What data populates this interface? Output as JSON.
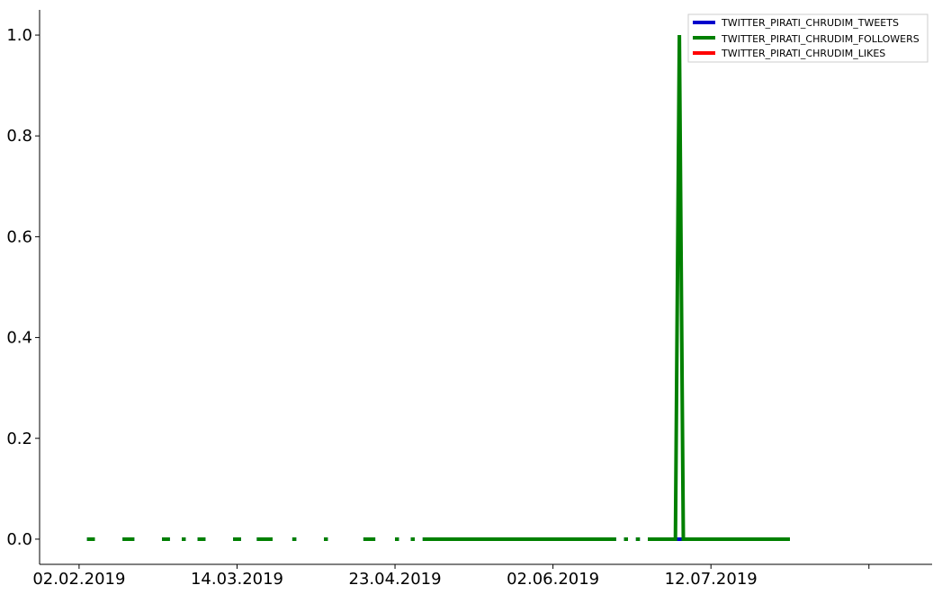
{
  "chart_data": {
    "type": "line",
    "title": "",
    "xlabel": "",
    "ylabel": "",
    "x_tick_labels": [
      "02.02.2019",
      "14.03.2019",
      "23.04.2019",
      "02.06.2019",
      "12.07.2019",
      ""
    ],
    "y_tick_labels": [
      "0.0",
      "0.2",
      "0.4",
      "0.6",
      "0.8",
      "1.0"
    ],
    "ylim": [
      -0.05,
      1.05
    ],
    "xlim": [
      "2019-01-23",
      "2019-09-06"
    ],
    "legend_position": "top-right",
    "grid": false,
    "series": [
      {
        "name": "TWITTER_PIRATI_CHRUDIM_TWEETS",
        "color": "#0000cc",
        "segments": [
          {
            "x": [
              "2019-02-04",
              "2019-02-06"
            ],
            "y": [
              0,
              0
            ]
          },
          {
            "x": [
              "2019-02-13",
              "2019-02-16"
            ],
            "y": [
              0,
              0
            ]
          },
          {
            "x": [
              "2019-02-23",
              "2019-02-25"
            ],
            "y": [
              0,
              0
            ]
          },
          {
            "x": [
              "2019-02-28",
              "2019-03-01"
            ],
            "y": [
              0,
              0
            ]
          },
          {
            "x": [
              "2019-03-04",
              "2019-03-06"
            ],
            "y": [
              0,
              0
            ]
          },
          {
            "x": [
              "2019-03-13",
              "2019-03-15"
            ],
            "y": [
              0,
              0
            ]
          },
          {
            "x": [
              "2019-03-19",
              "2019-03-23"
            ],
            "y": [
              0,
              0
            ]
          },
          {
            "x": [
              "2019-03-28",
              "2019-03-29"
            ],
            "y": [
              0,
              0
            ]
          },
          {
            "x": [
              "2019-04-05",
              "2019-04-06"
            ],
            "y": [
              0,
              0
            ]
          },
          {
            "x": [
              "2019-04-15",
              "2019-04-18"
            ],
            "y": [
              0,
              0
            ]
          },
          {
            "x": [
              "2019-04-23",
              "2019-04-24"
            ],
            "y": [
              0,
              0
            ]
          },
          {
            "x": [
              "2019-04-27",
              "2019-04-28"
            ],
            "y": [
              0,
              0
            ]
          },
          {
            "x": [
              "2019-04-30",
              "2019-06-18"
            ],
            "y": [
              0,
              0
            ]
          },
          {
            "x": [
              "2019-06-20",
              "2019-06-21"
            ],
            "y": [
              0,
              0
            ]
          },
          {
            "x": [
              "2019-06-23",
              "2019-06-24"
            ],
            "y": [
              0,
              0
            ]
          },
          {
            "x": [
              "2019-06-26",
              "2019-07-03",
              "2019-07-04",
              "2019-07-05",
              "2019-08-01"
            ],
            "y": [
              0,
              0,
              0,
              0,
              0
            ]
          }
        ]
      },
      {
        "name": "TWITTER_PIRATI_CHRUDIM_FOLLOWERS",
        "color": "#008000",
        "segments": [
          {
            "x": [
              "2019-02-04",
              "2019-02-06"
            ],
            "y": [
              0,
              0
            ]
          },
          {
            "x": [
              "2019-02-13",
              "2019-02-16"
            ],
            "y": [
              0,
              0
            ]
          },
          {
            "x": [
              "2019-02-23",
              "2019-02-25"
            ],
            "y": [
              0,
              0
            ]
          },
          {
            "x": [
              "2019-02-28",
              "2019-03-01"
            ],
            "y": [
              0,
              0
            ]
          },
          {
            "x": [
              "2019-03-04",
              "2019-03-06"
            ],
            "y": [
              0,
              0
            ]
          },
          {
            "x": [
              "2019-03-13",
              "2019-03-15"
            ],
            "y": [
              0,
              0
            ]
          },
          {
            "x": [
              "2019-03-19",
              "2019-03-23"
            ],
            "y": [
              0,
              0
            ]
          },
          {
            "x": [
              "2019-03-28",
              "2019-03-29"
            ],
            "y": [
              0,
              0
            ]
          },
          {
            "x": [
              "2019-04-05",
              "2019-04-06"
            ],
            "y": [
              0,
              0
            ]
          },
          {
            "x": [
              "2019-04-15",
              "2019-04-18"
            ],
            "y": [
              0,
              0
            ]
          },
          {
            "x": [
              "2019-04-23",
              "2019-04-24"
            ],
            "y": [
              0,
              0
            ]
          },
          {
            "x": [
              "2019-04-27",
              "2019-04-28"
            ],
            "y": [
              0,
              0
            ]
          },
          {
            "x": [
              "2019-04-30",
              "2019-06-18"
            ],
            "y": [
              0,
              0
            ]
          },
          {
            "x": [
              "2019-06-20",
              "2019-06-21"
            ],
            "y": [
              0,
              0
            ]
          },
          {
            "x": [
              "2019-06-23",
              "2019-06-24"
            ],
            "y": [
              0,
              0
            ]
          },
          {
            "x": [
              "2019-06-26",
              "2019-07-03",
              "2019-07-04",
              "2019-07-05",
              "2019-08-01"
            ],
            "y": [
              0,
              0,
              1,
              0,
              0
            ]
          }
        ]
      },
      {
        "name": "TWITTER_PIRATI_CHRUDIM_LIKES",
        "color": "#ff0000",
        "segments": []
      }
    ]
  }
}
